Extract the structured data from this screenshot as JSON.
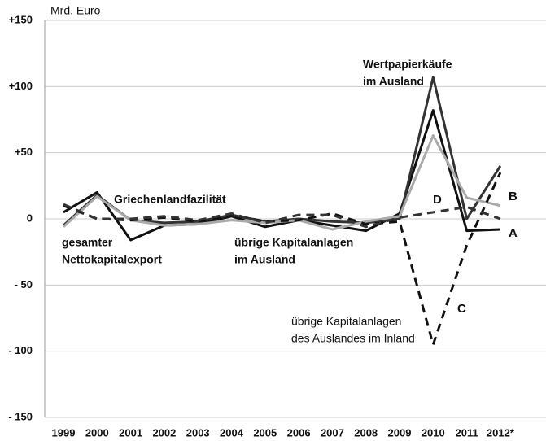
{
  "chart_data": {
    "type": "line",
    "y_label": "Mrd. Euro",
    "categories": [
      "1999",
      "2000",
      "2001",
      "2002",
      "2003",
      "2004",
      "2005",
      "2006",
      "2007",
      "2008",
      "2009",
      "2010",
      "2011",
      "2012*"
    ],
    "ylim": [
      -150,
      150
    ],
    "yticks": [
      {
        "value": 150,
        "label": "+150"
      },
      {
        "value": 100,
        "label": "+100"
      },
      {
        "value": 50,
        "label": "+50"
      },
      0,
      {
        "value": -50,
        "label": "- 50"
      },
      {
        "value": -100,
        "label": "- 100"
      },
      {
        "value": -150,
        "label": "- 150"
      }
    ],
    "grid": true,
    "series": [
      {
        "name": "A",
        "color": "#111111",
        "dashed": false,
        "values": [
          5,
          20,
          -16,
          -5,
          -4,
          2,
          -6,
          -1,
          -5,
          -9,
          4,
          82,
          -9,
          -8
        ]
      },
      {
        "color": "#333333",
        "dashed": false,
        "values": [
          -5,
          18,
          -1,
          -3,
          -2,
          3,
          -2,
          0,
          -2,
          -3,
          0,
          107,
          0,
          40
        ]
      },
      {
        "name": "B",
        "color": "#aaaaaa",
        "dashed": false,
        "values": [
          -6,
          17,
          -1,
          -5,
          -4,
          -1,
          -3,
          -1,
          -8,
          -2,
          2,
          63,
          16,
          10
        ]
      },
      {
        "name": "C",
        "color": "#111111",
        "dashed": true,
        "values": [
          10,
          0,
          -1,
          1,
          -2,
          3,
          -2,
          -1,
          4,
          -4,
          -2,
          -95,
          -20,
          35
        ]
      },
      {
        "name": "D",
        "color": "#333333",
        "dashed": true,
        "values": [
          11,
          0,
          0,
          2,
          -1,
          4,
          -3,
          3,
          3,
          -6,
          1,
          5,
          9,
          0
        ]
      }
    ],
    "annotations": [
      [
        "Griechenlandfazilität"
      ],
      [
        "gesamter",
        "Nettokapitalexport"
      ],
      [
        "übrige Kapitalanlagen",
        "im Ausland"
      ],
      [
        "Wertpapierkäufe",
        "im Ausland"
      ],
      [
        "übrige Kapitalanlagen",
        "des Auslandes im Inland"
      ]
    ]
  }
}
